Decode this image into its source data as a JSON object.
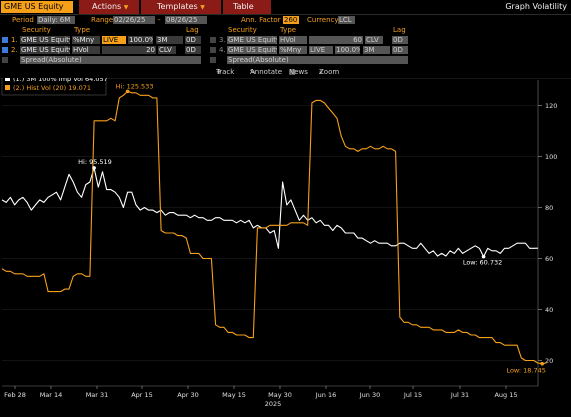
{
  "topbar": {
    "ticker": "GME US Equity",
    "menus": [
      "Actions",
      "Templates",
      "Table"
    ],
    "title": "Graph Volatility"
  },
  "params": {
    "period_label": "Period",
    "period_value": "Daily: 6M",
    "range_label": "Range",
    "range_start": "02/26/25",
    "range_end": "08/26/25",
    "ann_label": "Ann. Factor",
    "ann_value": "260",
    "currency_label": "Currency",
    "currency_value": "LCL",
    "dash": "-"
  },
  "headers": {
    "security": "Security",
    "type": "Type",
    "lag": "Lag"
  },
  "rows": [
    {
      "n": "1.",
      "security": "GME US Equity",
      "type": "%Mny",
      "live": "LIVE",
      "pct": "100.0%",
      "term": "3M",
      "lag": "0D"
    },
    {
      "n": "2.",
      "security": "GME US Equity",
      "type": "HVol",
      "period": "20",
      "basis": "CLV",
      "lag": "0D"
    },
    {
      "n": "3.",
      "security": "GME US Equity",
      "type": "HVol",
      "period": "60",
      "basis": "CLV",
      "lag": "0D"
    },
    {
      "n": "4.",
      "security": "GME US Equity",
      "type": "%Mny",
      "live": "LIVE",
      "pct": "100.0%",
      "term": "3M",
      "lag": "0D"
    }
  ],
  "spread": [
    "Spread(Absolute)",
    "Spread(Absolute)"
  ],
  "tools": [
    "Track",
    "Annotate",
    "News",
    "Zoom"
  ],
  "legend": [
    {
      "label": "(1.) 3M 100% Imp Vol 64.057",
      "color": "#ffffff"
    },
    {
      "label": "(2.) Hist Vol (20)  19.071",
      "color": "#f6a01a"
    }
  ],
  "chart_data": {
    "type": "line",
    "x_tick_labels": [
      "Feb 28",
      "Mar 14",
      "Mar 31",
      "Apr 15",
      "Apr 30",
      "May 15",
      "May 30",
      "Jun 16",
      "Jun 30",
      "Jul 15",
      "Jul 31",
      "Aug 15"
    ],
    "x_year_label": "2025",
    "ylim": [
      10,
      130
    ],
    "y_ticks": [
      20,
      40,
      60,
      80,
      100,
      120
    ],
    "series": [
      {
        "name": "(1.) 3M 100% Imp Vol",
        "color": "#ffffff",
        "values": [
          83,
          82,
          84,
          81,
          83,
          84,
          82,
          79,
          81,
          83,
          82,
          84,
          85,
          86,
          83,
          88,
          93,
          90,
          86,
          84,
          89,
          90,
          95.519,
          88,
          94,
          87,
          87,
          86,
          84,
          80,
          86,
          86,
          81,
          79,
          80,
          79,
          79,
          78,
          79,
          77,
          78,
          78,
          77,
          77,
          77,
          76,
          77,
          76,
          76,
          75,
          75,
          76,
          76,
          75,
          75,
          75,
          74,
          75,
          74,
          75,
          72,
          73,
          72,
          72,
          70,
          71,
          64,
          90,
          81,
          83,
          79,
          75,
          77,
          75,
          76,
          74,
          75,
          73,
          73,
          71,
          73,
          72,
          70,
          70,
          70,
          68,
          68,
          67,
          66,
          67,
          66,
          66,
          66,
          65,
          65,
          66,
          66,
          65,
          64,
          64,
          66,
          64,
          62,
          63,
          61,
          62,
          61,
          63,
          62,
          64,
          62,
          63,
          64,
          65,
          64,
          60.732,
          64,
          63,
          63,
          62,
          64,
          64,
          65,
          66,
          66,
          66,
          64,
          64,
          64.057
        ],
        "annotations": [
          {
            "text": "Hi: 95.519",
            "index": 22,
            "value": 95.519
          },
          {
            "text": "Low: 60.732",
            "index": 115,
            "value": 60.732
          }
        ]
      },
      {
        "name": "(2.) Hist Vol (20)",
        "color": "#f6a01a",
        "values": [
          56,
          55,
          55,
          54,
          54,
          54,
          53,
          53,
          53,
          53,
          54,
          47,
          47,
          47,
          47,
          48,
          48,
          53,
          54,
          54,
          53,
          53,
          114,
          114,
          114,
          114,
          115,
          114,
          123,
          124,
          125.533,
          125,
          125,
          124,
          124,
          124,
          123,
          123,
          71,
          70,
          70,
          70,
          69,
          69,
          68,
          62,
          62,
          62,
          60,
          60,
          60,
          34,
          33,
          33,
          31,
          31,
          30,
          30,
          30,
          29,
          29,
          72,
          72,
          72,
          73,
          73,
          73,
          73,
          73,
          74,
          74,
          74,
          74,
          73,
          121,
          122,
          122,
          121,
          119,
          117,
          115,
          108,
          104,
          103,
          103,
          102,
          103,
          103,
          104,
          103,
          103,
          104,
          103,
          103,
          102,
          37,
          35,
          35,
          34,
          34,
          33,
          33,
          33,
          32,
          32,
          32,
          31,
          31,
          31,
          32,
          31,
          31,
          30,
          30,
          29,
          29,
          29,
          29,
          27,
          27,
          26,
          26,
          26,
          26,
          21,
          20,
          20,
          20,
          19,
          18.745,
          19.071
        ],
        "annotations": [
          {
            "text": "Hi: 125.533",
            "index": 30,
            "value": 125.533
          },
          {
            "text": "Low: 18.745",
            "index": 129,
            "value": 18.745
          }
        ]
      }
    ]
  }
}
